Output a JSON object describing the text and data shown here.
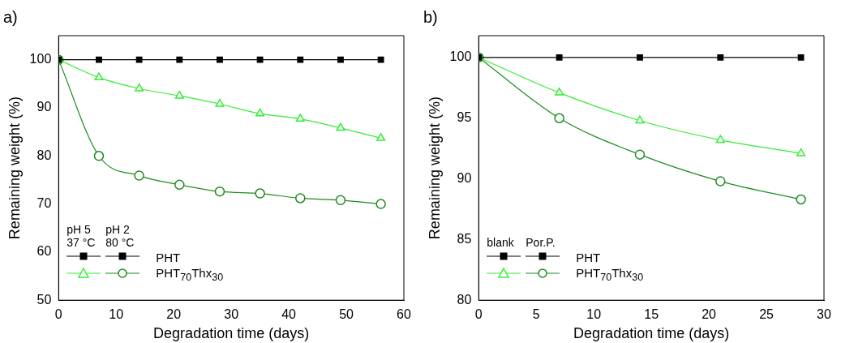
{
  "chart_data": [
    {
      "type": "line",
      "title": "a)",
      "xlabel": "Degradation time (days)",
      "ylabel": "Remaining weight (%)",
      "xlim": [
        0,
        60
      ],
      "xticks": [
        0,
        10,
        20,
        30,
        40,
        50,
        60
      ],
      "ylim": [
        50,
        105
      ],
      "yticks": [
        50,
        60,
        70,
        80,
        90,
        100
      ],
      "grid": false,
      "legend": "bottom left",
      "annotations": [
        "pH 5\n37 °C",
        "pH 2\n80 °C"
      ],
      "x": [
        0,
        7,
        14,
        21,
        28,
        35,
        42,
        49,
        56
      ],
      "series": [
        {
          "name": "PHT",
          "color": "#000000",
          "marker": "square",
          "values": [
            100,
            100,
            100,
            100,
            100,
            100,
            100,
            100,
            100
          ]
        },
        {
          "color": "#33ee33",
          "marker": "triangle",
          "values": [
            100,
            96.3,
            94,
            92.5,
            90.8,
            88.8,
            87.7,
            85.8,
            83.7
          ]
        },
        {
          "name": "PHT$_{70}$Thx$_{30}$",
          "color": "#1e8c1e",
          "marker": "circle",
          "values": [
            100,
            80,
            75.9,
            74,
            72.6,
            72.2,
            71.2,
            70.8,
            70
          ]
        }
      ]
    },
    {
      "type": "line",
      "title": "b)",
      "xlabel": "Degradation time (days)",
      "ylabel": "Remaining weight (%)",
      "xlim": [
        0,
        30
      ],
      "xticks": [
        0,
        5,
        10,
        15,
        20,
        25,
        30
      ],
      "ylim": [
        80,
        101.8
      ],
      "yticks": [
        80,
        85,
        90,
        95,
        100
      ],
      "grid": false,
      "legend": "bottom left",
      "annotations": [
        "blank",
        "Por.P."
      ],
      "x": [
        0,
        7,
        14,
        21,
        28
      ],
      "series": [
        {
          "name": "PHT",
          "color": "#000000",
          "marker": "square",
          "values": [
            100,
            100,
            100,
            100,
            100
          ]
        },
        {
          "color": "#33ee33",
          "marker": "triangle",
          "values": [
            100,
            97.1,
            94.8,
            93.2,
            92.1
          ]
        },
        {
          "name": "PHT$_{70}$Thx$_{30}$",
          "color": "#1e8c1e",
          "marker": "circle",
          "values": [
            100,
            95,
            92,
            89.8,
            88.3
          ]
        }
      ]
    }
  ]
}
